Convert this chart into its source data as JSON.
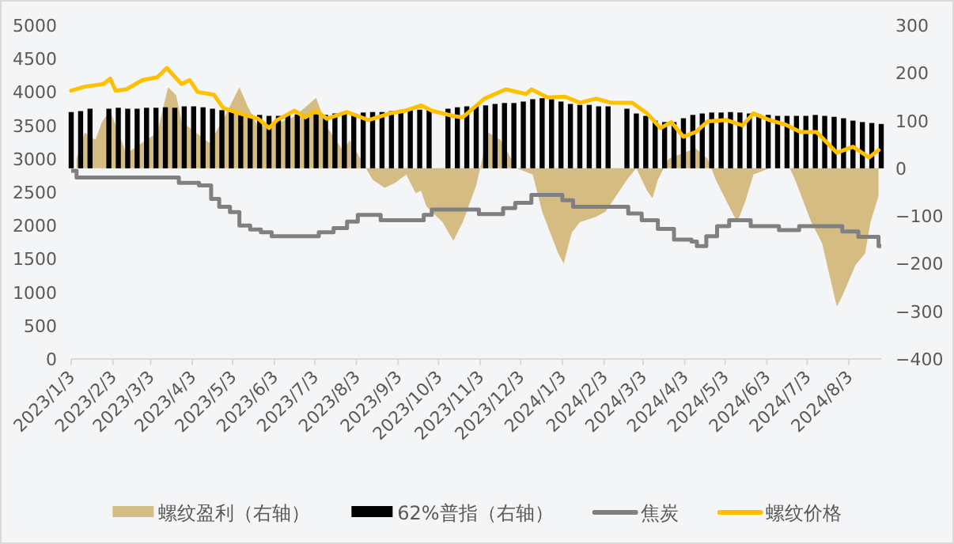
{
  "chart_data": {
    "type": "bar",
    "xlim": [
      "2023-01-03",
      "2024-08-27"
    ],
    "xticks": [
      {
        "value": "2023-01-03",
        "label": "2023/1/3"
      },
      {
        "value": "2023-02-03",
        "label": "2023/2/3"
      },
      {
        "value": "2023-03-03",
        "label": "2023/3/3"
      },
      {
        "value": "2023-04-03",
        "label": "2023/4/3"
      },
      {
        "value": "2023-05-03",
        "label": "2023/5/3"
      },
      {
        "value": "2023-06-03",
        "label": "2023/6/3"
      },
      {
        "value": "2023-07-03",
        "label": "2023/7/3"
      },
      {
        "value": "2023-08-03",
        "label": "2023/8/3"
      },
      {
        "value": "2023-09-03",
        "label": "2023/9/3"
      },
      {
        "value": "2023-10-03",
        "label": "2023/10/3"
      },
      {
        "value": "2023-11-03",
        "label": "2023/11/3"
      },
      {
        "value": "2023-12-03",
        "label": "2023/12/3"
      },
      {
        "value": "2024-01-03",
        "label": "2024/1/3"
      },
      {
        "value": "2024-02-03",
        "label": "2024/2/3"
      },
      {
        "value": "2024-03-03",
        "label": "2024/3/3"
      },
      {
        "value": "2024-04-03",
        "label": "2024/4/3"
      },
      {
        "value": "2024-05-03",
        "label": "2024/5/3"
      },
      {
        "value": "2024-06-03",
        "label": "2024/6/3"
      },
      {
        "value": "2024-07-03",
        "label": "2024/7/3"
      },
      {
        "value": "2024-08-03",
        "label": "2024/8/3"
      }
    ],
    "ylim": [
      0,
      5000
    ],
    "yticks": [
      0,
      500,
      1000,
      1500,
      2000,
      2500,
      3000,
      3500,
      4000,
      4500,
      5000
    ],
    "y2lim": [
      -400,
      300
    ],
    "y2ticks": [
      {
        "value": -400,
        "label": "−400"
      },
      {
        "value": -300,
        "label": "−300"
      },
      {
        "value": -200,
        "label": "−200"
      },
      {
        "value": -100,
        "label": "−100"
      },
      0,
      100,
      200,
      300
    ],
    "legend": "bottom",
    "series": [
      {
        "name": "螺纹盈利（右轴）",
        "type": "area",
        "axis": "y2",
        "color": "#d4bc82",
        "x": [
          "2023-01-07",
          "2023-01-13",
          "2023-01-21",
          "2023-01-26",
          "2023-02-01",
          "2023-02-13",
          "2023-03-08",
          "2023-03-16",
          "2023-03-22",
          "2023-03-26",
          "2023-04-08",
          "2023-04-16",
          "2023-04-28",
          "2023-05-08",
          "2023-05-14",
          "2023-05-22",
          "2023-06-03",
          "2023-06-18",
          "2023-07-04",
          "2023-07-12",
          "2023-07-24",
          "2023-07-29",
          "2023-08-15",
          "2023-08-24",
          "2023-09-01",
          "2023-09-09",
          "2023-09-16",
          "2023-09-20",
          "2023-09-24",
          "2023-10-06",
          "2023-10-14",
          "2023-10-21",
          "2023-10-31",
          "2023-11-09",
          "2023-11-18",
          "2023-11-30",
          "2023-12-12",
          "2023-12-19",
          "2023-12-31",
          "2024-01-04",
          "2024-01-10",
          "2024-01-16",
          "2024-01-28",
          "2024-02-04",
          "2024-02-12",
          "2024-02-20",
          "2024-02-27",
          "2024-03-06",
          "2024-03-10",
          "2024-03-14",
          "2024-03-22",
          "2024-04-11",
          "2024-04-20",
          "2024-04-26",
          "2024-05-04",
          "2024-05-12",
          "2024-05-18",
          "2024-05-24",
          "2024-06-05",
          "2024-06-20",
          "2024-06-24",
          "2024-07-06",
          "2024-07-14",
          "2024-07-25",
          "2024-07-29",
          "2024-08-08",
          "2024-08-15",
          "2024-08-19",
          "2024-08-25"
        ],
        "values": [
          20,
          75,
          60,
          98,
          120,
          31,
          75,
          170,
          153,
          98,
          70,
          53,
          114,
          170,
          131,
          87,
          92,
          109,
          148,
          87,
          37,
          59,
          -24,
          -41,
          -30,
          -13,
          -52,
          -47,
          -80,
          -113,
          -152,
          -113,
          -36,
          75,
          60,
          0,
          -13,
          -91,
          -179,
          -200,
          -135,
          -113,
          -102,
          -91,
          -58,
          -24,
          0,
          -47,
          -63,
          -24,
          20,
          42,
          20,
          -24,
          -69,
          -113,
          -69,
          -13,
          0,
          0,
          -24,
          -113,
          -157,
          -290,
          -268,
          -202,
          -179,
          -113,
          -58
        ]
      },
      {
        "name": "62%普指（右轴）",
        "axis": "y2",
        "color": "#000000",
        "x": [
          "2023-01-03",
          "2023-01-10",
          "2023-01-17",
          "2023-01-24",
          "2023-01-31",
          "2023-02-07",
          "2023-02-14",
          "2023-02-21",
          "2023-02-28",
          "2023-03-07",
          "2023-03-14",
          "2023-03-21",
          "2023-03-28",
          "2023-04-04",
          "2023-04-11",
          "2023-04-18",
          "2023-04-25",
          "2023-05-02",
          "2023-05-09",
          "2023-05-16",
          "2023-05-23",
          "2023-05-30",
          "2023-06-06",
          "2023-06-13",
          "2023-06-20",
          "2023-06-27",
          "2023-07-04",
          "2023-07-11",
          "2023-07-18",
          "2023-07-25",
          "2023-08-01",
          "2023-08-08",
          "2023-08-15",
          "2023-08-22",
          "2023-08-29",
          "2023-09-05",
          "2023-09-12",
          "2023-09-19",
          "2023-09-26",
          "2023-10-03",
          "2023-10-10",
          "2023-10-17",
          "2023-10-24",
          "2023-10-31",
          "2023-11-07",
          "2023-11-14",
          "2023-11-21",
          "2023-11-28",
          "2023-12-05",
          "2023-12-12",
          "2023-12-19",
          "2023-12-26",
          "2024-01-02",
          "2024-01-09",
          "2024-01-16",
          "2024-01-23",
          "2024-01-30",
          "2024-02-06",
          "2024-02-13",
          "2024-02-20",
          "2024-02-27",
          "2024-03-05",
          "2024-03-12",
          "2024-03-19",
          "2024-03-26",
          "2024-04-02",
          "2024-04-09",
          "2024-04-16",
          "2024-04-23",
          "2024-04-30",
          "2024-05-07",
          "2024-05-14",
          "2024-05-21",
          "2024-05-28",
          "2024-06-04",
          "2024-06-11",
          "2024-06-18",
          "2024-06-25",
          "2024-07-02",
          "2024-07-09",
          "2024-07-16",
          "2024-07-23",
          "2024-07-30",
          "2024-08-06",
          "2024-08-13",
          "2024-08-20",
          "2024-08-27"
        ],
        "values": [
          118,
          120,
          125,
          null,
          125,
          127,
          125,
          125,
          127,
          127,
          128,
          127,
          130,
          130,
          128,
          125,
          122,
          118,
          115,
          112,
          112,
          110,
          110,
          112,
          113,
          112,
          113,
          112,
          115,
          115,
          115,
          117,
          118,
          118,
          120,
          122,
          122,
          123,
          123,
          null,
          125,
          128,
          130,
          130,
          132,
          135,
          137,
          137,
          140,
          145,
          147,
          145,
          140,
          135,
          133,
          133,
          130,
          130,
          null,
          125,
          115,
          110,
          100,
          97,
          97,
          105,
          112,
          115,
          117,
          117,
          118,
          117,
          115,
          113,
          112,
          110,
          110,
          110,
          110,
          112,
          110,
          108,
          105,
          100,
          97,
          95,
          93
        ]
      },
      {
        "name": "焦炭",
        "type": "step",
        "color": "#808080",
        "x": [
          "2023-01-03",
          "2023-01-07",
          "2023-03-24",
          "2023-04-08",
          "2023-04-17",
          "2023-04-23",
          "2023-05-01",
          "2023-05-08",
          "2023-05-16",
          "2023-05-24",
          "2023-06-01",
          "2023-07-06",
          "2023-07-17",
          "2023-07-27",
          "2023-08-04",
          "2023-08-21",
          "2023-09-22",
          "2023-09-28",
          "2023-11-02",
          "2023-11-20",
          "2023-11-29",
          "2023-12-11",
          "2024-01-03",
          "2024-01-11",
          "2024-02-21",
          "2024-03-02",
          "2024-03-14",
          "2024-03-26",
          "2024-04-08",
          "2024-04-12",
          "2024-04-19",
          "2024-04-27",
          "2024-05-06",
          "2024-05-22",
          "2024-06-12",
          "2024-06-27",
          "2024-07-29",
          "2024-08-10",
          "2024-08-25"
        ],
        "values": [
          2820,
          2720,
          2640,
          2600,
          2400,
          2280,
          2200,
          2000,
          1940,
          1900,
          1840,
          1900,
          1960,
          2060,
          2160,
          2080,
          2160,
          2240,
          2170,
          2260,
          2340,
          2460,
          2380,
          2280,
          2180,
          2080,
          1950,
          1790,
          1760,
          1690,
          1840,
          1990,
          2080,
          1990,
          1930,
          1990,
          1910,
          1830,
          1690
        ]
      },
      {
        "name": "螺纹价格",
        "type": "line",
        "color": "#ffc000",
        "x": [
          "2023-01-03",
          "2023-01-13",
          "2023-01-27",
          "2023-02-01",
          "2023-02-05",
          "2023-02-13",
          "2023-02-25",
          "2023-03-08",
          "2023-03-15",
          "2023-03-26",
          "2023-04-01",
          "2023-04-07",
          "2023-04-19",
          "2023-04-26",
          "2023-05-08",
          "2023-05-22",
          "2023-05-30",
          "2023-06-05",
          "2023-06-18",
          "2023-06-26",
          "2023-07-04",
          "2023-07-12",
          "2023-07-27",
          "2023-08-12",
          "2023-08-28",
          "2023-09-08",
          "2023-09-20",
          "2023-09-28",
          "2023-10-14",
          "2023-10-21",
          "2023-11-06",
          "2023-11-22",
          "2023-12-07",
          "2023-12-11",
          "2023-12-23",
          "2024-01-05",
          "2024-01-16",
          "2024-01-28",
          "2024-02-08",
          "2024-02-24",
          "2024-03-06",
          "2024-03-16",
          "2024-03-24",
          "2024-04-02",
          "2024-04-11",
          "2024-04-20",
          "2024-05-04",
          "2024-05-16",
          "2024-05-24",
          "2024-06-05",
          "2024-06-17",
          "2024-06-28",
          "2024-07-10",
          "2024-07-25",
          "2024-08-06",
          "2024-08-18",
          "2024-08-25"
        ],
        "values": [
          4020,
          4080,
          4120,
          4200,
          4020,
          4040,
          4180,
          4220,
          4360,
          4120,
          4180,
          4000,
          3960,
          3760,
          3680,
          3600,
          3460,
          3580,
          3720,
          3620,
          3720,
          3600,
          3700,
          3580,
          3680,
          3720,
          3800,
          3720,
          3640,
          3620,
          3900,
          4040,
          3970,
          4040,
          3920,
          3930,
          3840,
          3900,
          3840,
          3840,
          3680,
          3460,
          3550,
          3330,
          3400,
          3560,
          3580,
          3500,
          3680,
          3580,
          3510,
          3400,
          3400,
          3090,
          3180,
          3020,
          3130
        ]
      }
    ]
  }
}
